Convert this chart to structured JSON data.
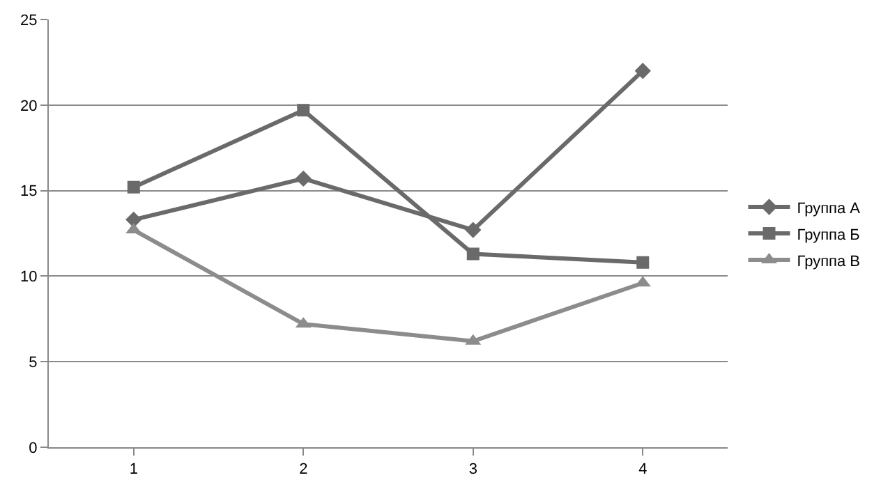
{
  "chart_data": {
    "type": "line",
    "categories": [
      "1",
      "2",
      "3",
      "4"
    ],
    "series": [
      {
        "name": "Группа А",
        "color": "#6a6a6a",
        "marker": "diamond",
        "values": [
          13.3,
          15.7,
          12.7,
          22.0
        ]
      },
      {
        "name": "Группа Б",
        "color": "#6a6a6a",
        "marker": "square",
        "values": [
          15.2,
          19.7,
          11.3,
          10.8
        ]
      },
      {
        "name": "Группа В",
        "color": "#8c8c8c",
        "marker": "triangle",
        "values": [
          12.7,
          7.2,
          6.2,
          9.6
        ]
      }
    ],
    "ylim": [
      0,
      25
    ],
    "yticks": [
      0,
      5,
      10,
      15,
      20,
      25
    ],
    "grid": "y",
    "legend": "right"
  }
}
